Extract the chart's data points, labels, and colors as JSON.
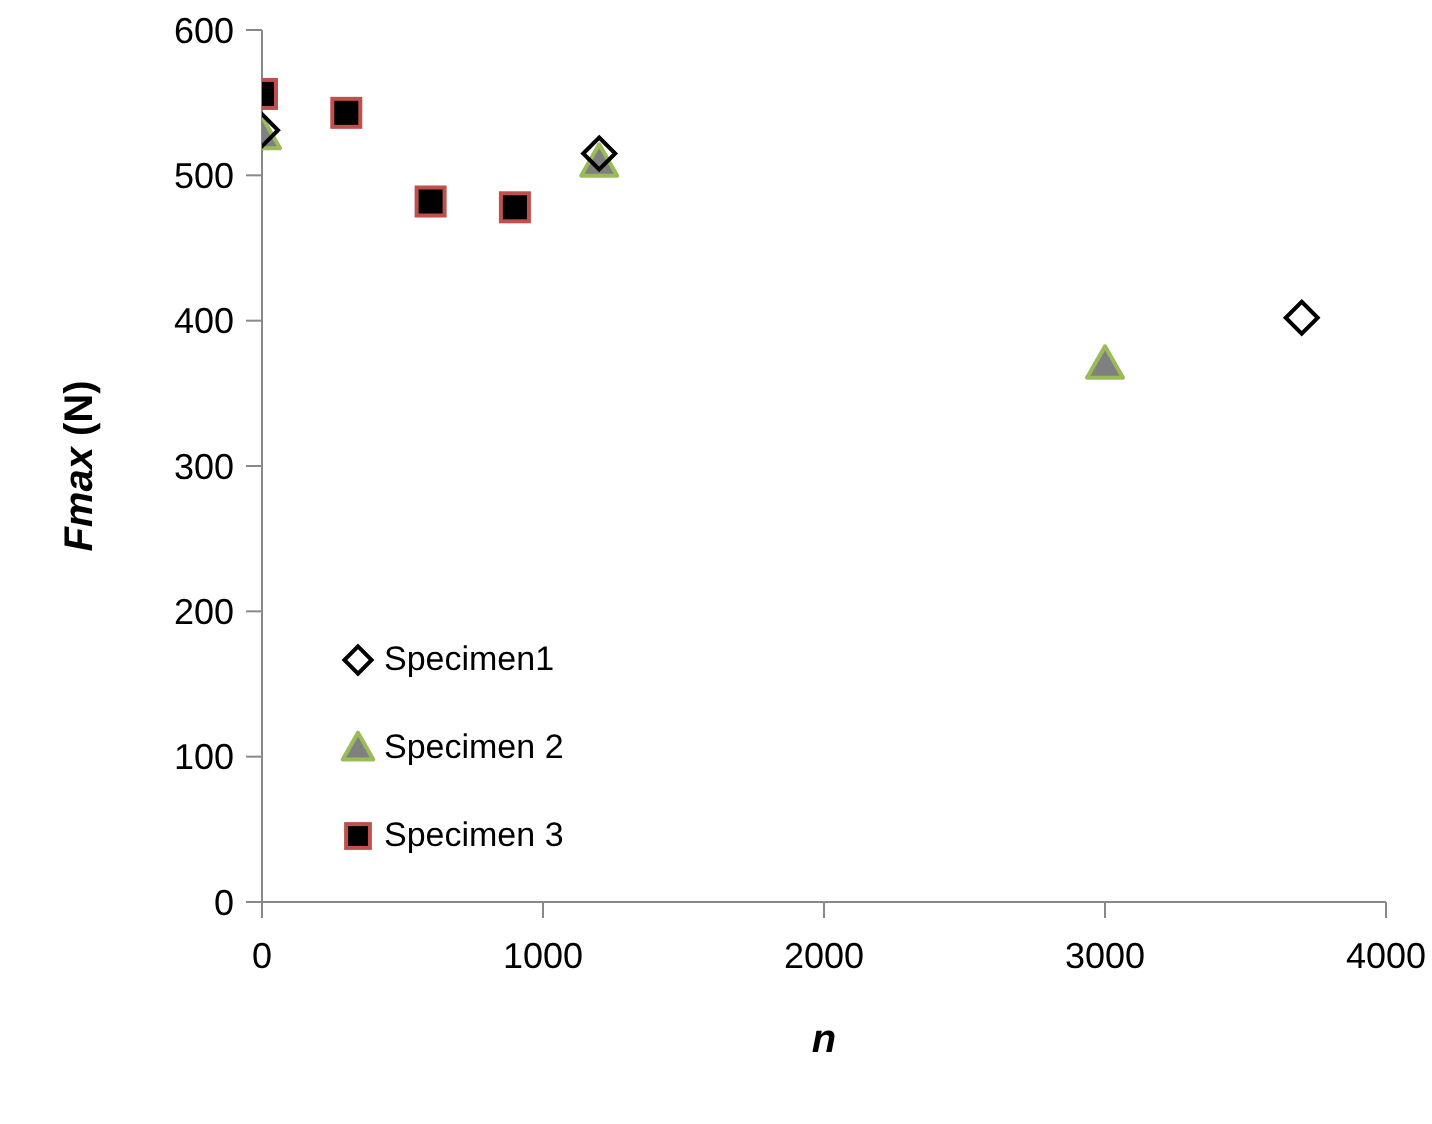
{
  "chart_data": {
    "type": "scatter",
    "xlabel": "n",
    "ylabel": "Fmax (N)",
    "xlim": [
      0,
      4000
    ],
    "xticks": [
      0,
      1000,
      2000,
      3000,
      4000
    ],
    "ylim": [
      0,
      600
    ],
    "yticks": [
      0,
      100,
      200,
      300,
      400,
      500,
      600
    ],
    "grid": false,
    "legend": "bottom left",
    "series": [
      {
        "name": "Specimen1",
        "marker": "diamond",
        "color": "#000000",
        "x": [
          0,
          1200,
          3700
        ],
        "values": [
          531,
          515,
          402
        ]
      },
      {
        "name": "Specimen 2",
        "marker": "triangle",
        "color": "#808080",
        "x": [
          0,
          1200,
          3000
        ],
        "values": [
          528,
          509,
          370
        ]
      },
      {
        "name": "Specimen 3",
        "marker": "square",
        "color": "#000000",
        "x": [
          0,
          300,
          600,
          900
        ],
        "values": [
          556,
          543,
          482,
          478
        ]
      }
    ]
  }
}
